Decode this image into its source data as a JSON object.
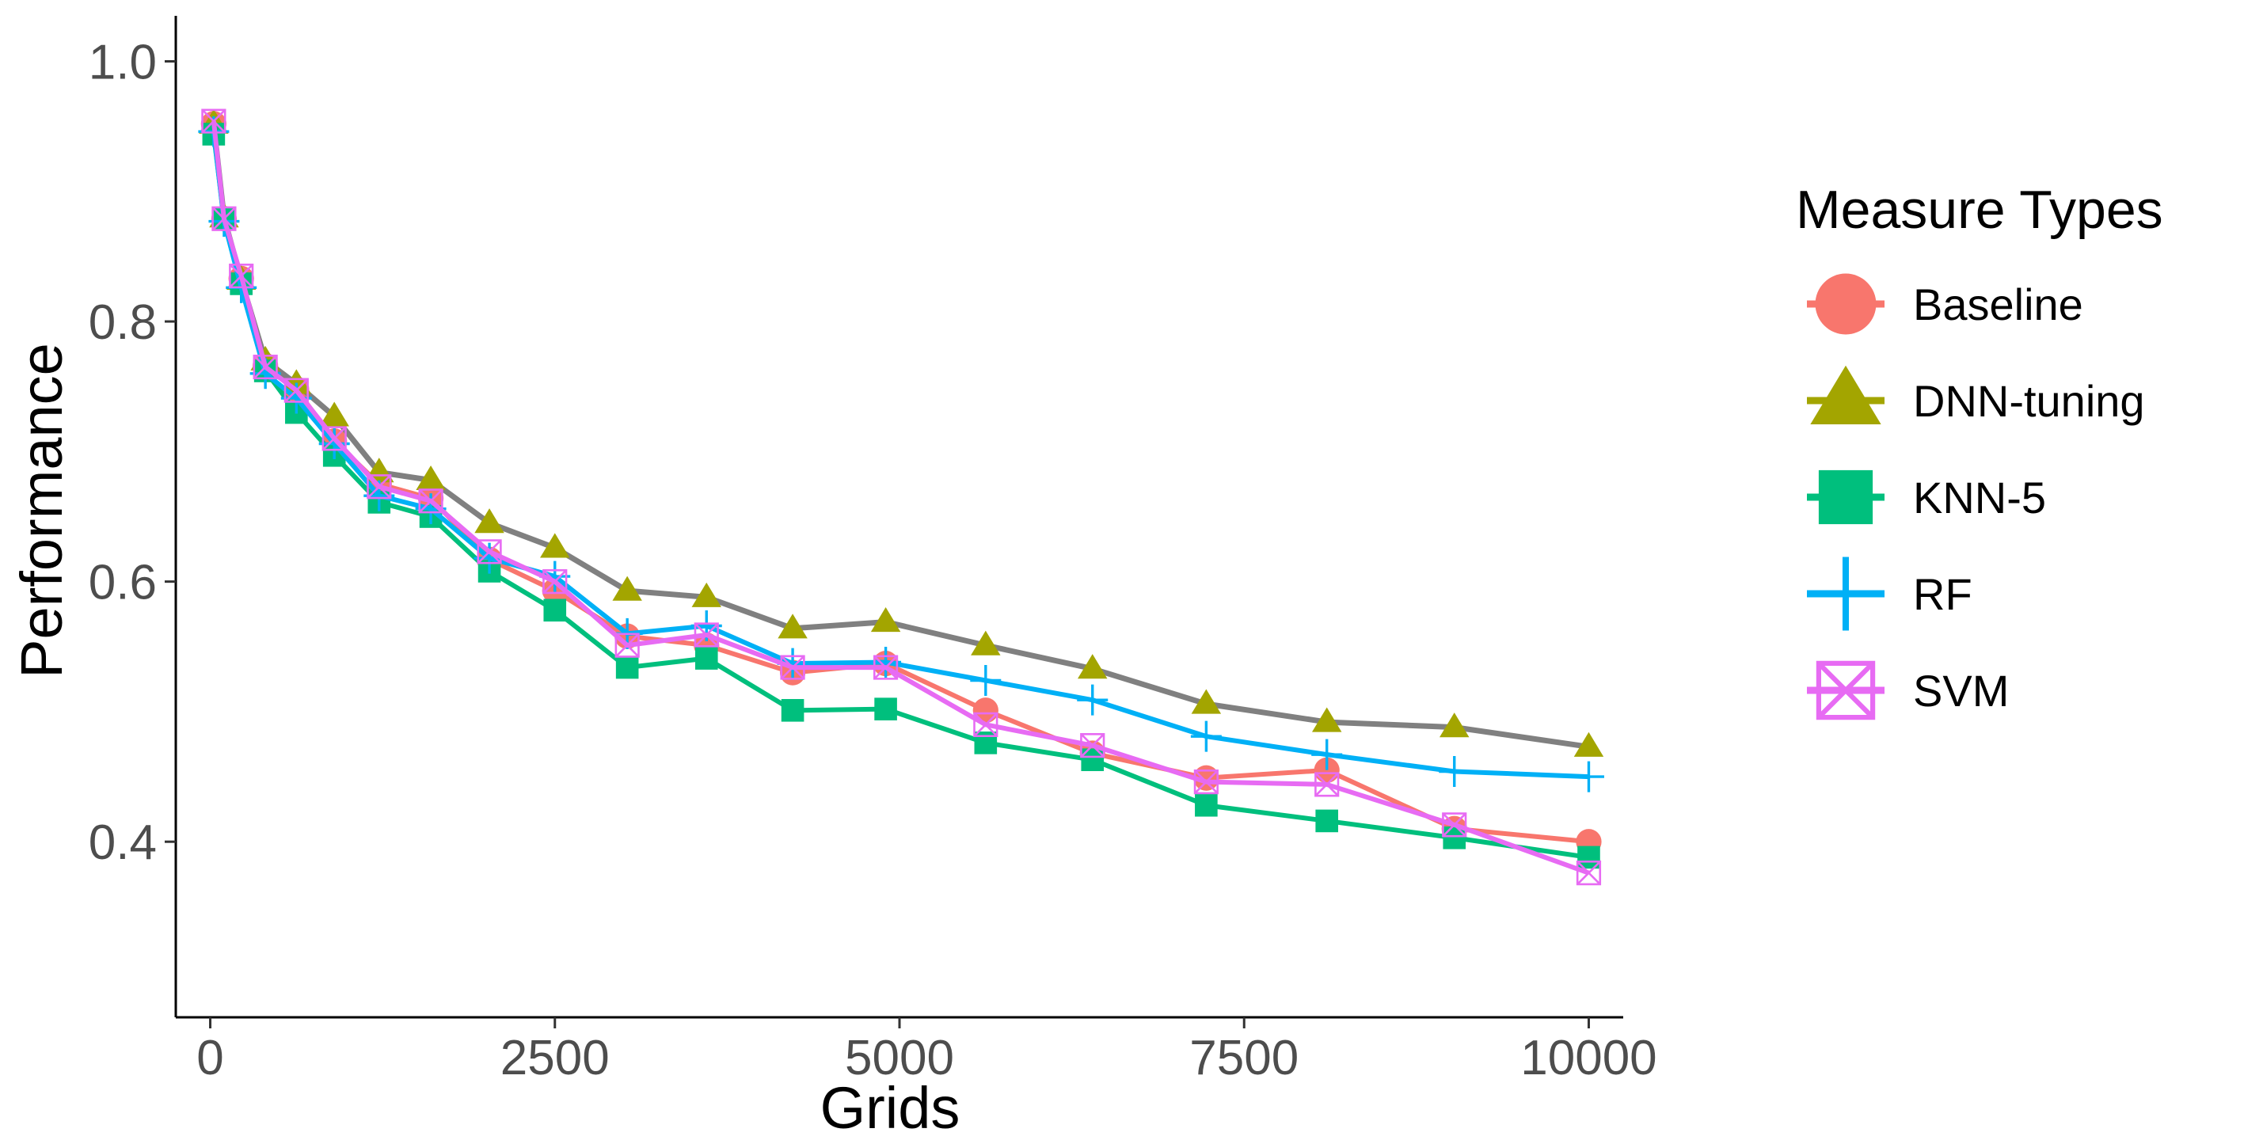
{
  "chart_data": {
    "type": "line",
    "title": "",
    "xlabel": "Grids",
    "ylabel": "Performance",
    "xlim": [
      -250,
      10250
    ],
    "ylim": [
      0.265,
      1.035
    ],
    "x_ticks": [
      0,
      2500,
      5000,
      7500,
      10000
    ],
    "x_tick_labels": [
      "0",
      "2500",
      "5000",
      "7500",
      "10000"
    ],
    "y_ticks": [
      0.4,
      0.6,
      0.8,
      1.0
    ],
    "y_tick_labels": [
      "0.4",
      "0.6",
      "0.8",
      "1.0"
    ],
    "grid": false,
    "legend": {
      "title": "Measure Types",
      "position": "right"
    },
    "x": [
      25,
      100,
      225,
      400,
      625,
      900,
      1225,
      1600,
      2025,
      2500,
      3025,
      3600,
      4225,
      4900,
      5625,
      6400,
      7225,
      8100,
      9025,
      10000
    ],
    "series": [
      {
        "name": "Baseline",
        "color": "#F8766D",
        "marker": "circle",
        "values": [
          0.952,
          0.879,
          0.833,
          0.766,
          0.748,
          0.708,
          0.675,
          0.664,
          0.617,
          0.593,
          0.558,
          0.551,
          0.53,
          0.537,
          0.501,
          0.468,
          0.449,
          0.455,
          0.41,
          0.4
        ]
      },
      {
        "name": "DNN-tuning",
        "color": "#A3A500",
        "marker": "triangle",
        "values": [
          0.952,
          0.88,
          0.832,
          0.77,
          0.752,
          0.727,
          0.684,
          0.678,
          0.645,
          0.626,
          0.593,
          0.588,
          0.564,
          0.569,
          0.551,
          0.533,
          0.506,
          0.492,
          0.488,
          0.473
        ]
      },
      {
        "name": "KNN-5",
        "color": "#00BF7D",
        "marker": "square",
        "values": [
          0.944,
          0.879,
          0.829,
          0.762,
          0.73,
          0.697,
          0.661,
          0.65,
          0.608,
          0.578,
          0.534,
          0.541,
          0.501,
          0.502,
          0.476,
          0.463,
          0.428,
          0.416,
          0.403,
          0.388
        ]
      },
      {
        "name": "RF",
        "color": "#00B0F6",
        "marker": "plus",
        "values": [
          0.946,
          0.877,
          0.826,
          0.76,
          0.741,
          0.706,
          0.666,
          0.656,
          0.618,
          0.604,
          0.56,
          0.566,
          0.537,
          0.538,
          0.524,
          0.509,
          0.481,
          0.467,
          0.454,
          0.45
        ]
      },
      {
        "name": "SVM",
        "color": "#E76BF3",
        "marker": "square-x",
        "values": [
          0.954,
          0.879,
          0.835,
          0.765,
          0.747,
          0.71,
          0.673,
          0.662,
          0.623,
          0.6,
          0.551,
          0.559,
          0.534,
          0.534,
          0.49,
          0.474,
          0.446,
          0.444,
          0.413,
          0.376
        ]
      }
    ]
  }
}
